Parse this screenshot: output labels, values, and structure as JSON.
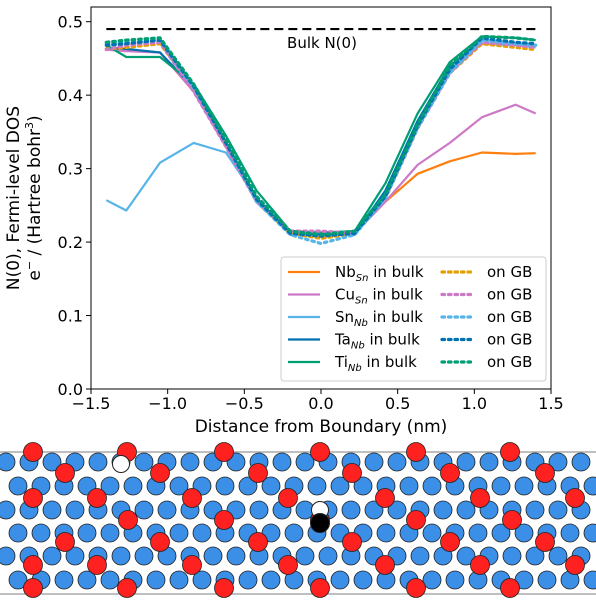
{
  "chart_data": {
    "type": "line",
    "xlabel": "Distance from Boundary (nm)",
    "ylabel_line1": "N(0), Fermi-level DOS",
    "ylabel_line2_pre": "e",
    "ylabel_line2_sup": "−",
    "ylabel_line2_mid": " / (Hartree bohr",
    "ylabel_line2_sup2": "3",
    "ylabel_line2_post": ")",
    "xlim": [
      -1.5,
      1.5
    ],
    "ylim": [
      0.0,
      0.52
    ],
    "xticks": [
      -1.5,
      -1.0,
      -0.5,
      0.0,
      0.5,
      1.0,
      1.5
    ],
    "xtick_labels": [
      "−1.5",
      "−1.0",
      "−0.5",
      "0.0",
      "0.5",
      "1.0",
      "1.5"
    ],
    "yticks": [
      0.0,
      0.1,
      0.2,
      0.3,
      0.4,
      0.5
    ],
    "ytick_labels": [
      "0.0",
      "0.1",
      "0.2",
      "0.3",
      "0.4",
      "0.5"
    ],
    "reference_line": {
      "label": "Bulk N(0)",
      "y": 0.49,
      "x": [
        -1.4,
        1.4
      ]
    },
    "x": [
      -1.4,
      -1.27,
      -1.05,
      -0.83,
      -0.62,
      -0.42,
      -0.2,
      0.0,
      0.22,
      0.42,
      0.63,
      0.84,
      1.05,
      1.27,
      1.4
    ],
    "series": [
      {
        "element": "Nb",
        "sub": "Sn",
        "suffix": " in bulk",
        "style": "solid",
        "color": "#ff7f0e",
        "values": [
          0.465,
          0.462,
          0.458,
          0.405,
          0.33,
          0.255,
          0.212,
          0.212,
          0.212,
          0.255,
          0.293,
          0.31,
          0.322,
          0.32,
          0.321
        ]
      },
      {
        "element": "Cu",
        "sub": "Sn",
        "suffix": " in bulk",
        "style": "solid",
        "color": "#cc79c7",
        "values": [
          0.462,
          0.46,
          0.458,
          0.405,
          0.33,
          0.255,
          0.212,
          0.212,
          0.212,
          0.255,
          0.305,
          0.335,
          0.37,
          0.387,
          0.375
        ]
      },
      {
        "element": "Sn",
        "sub": "Nb",
        "suffix": " in bulk",
        "style": "solid",
        "color": "#56b4e9",
        "values": [
          0.257,
          0.243,
          0.308,
          0.335,
          0.322,
          0.26,
          0.212,
          0.212,
          0.212,
          0.27,
          0.365,
          0.435,
          0.47,
          0.468,
          0.465
        ]
      },
      {
        "element": "Ta",
        "sub": "Nb",
        "suffix": " in bulk",
        "style": "solid",
        "color": "#0072b2",
        "values": [
          0.465,
          0.463,
          0.458,
          0.41,
          0.335,
          0.26,
          0.21,
          0.21,
          0.21,
          0.27,
          0.365,
          0.44,
          0.475,
          0.47,
          0.468
        ]
      },
      {
        "element": "Ti",
        "sub": "Nb",
        "suffix": " in bulk",
        "style": "solid",
        "color": "#009e73",
        "values": [
          0.468,
          0.452,
          0.452,
          0.415,
          0.345,
          0.27,
          0.215,
          0.213,
          0.215,
          0.28,
          0.375,
          0.445,
          0.48,
          0.478,
          0.475
        ]
      },
      {
        "element": "Nb",
        "sub": "Sn",
        "suffix": " on GB",
        "style": "dotted",
        "color": "#e69f00",
        "values": [
          0.463,
          0.465,
          0.47,
          0.41,
          0.335,
          0.255,
          0.212,
          0.205,
          0.212,
          0.26,
          0.355,
          0.43,
          0.47,
          0.465,
          0.462
        ]
      },
      {
        "element": "Cu",
        "sub": "Sn",
        "suffix": " on GB",
        "style": "dotted",
        "color": "#cc79c7",
        "values": [
          0.462,
          0.468,
          0.472,
          0.405,
          0.33,
          0.255,
          0.215,
          0.215,
          0.212,
          0.26,
          0.355,
          0.43,
          0.472,
          0.468,
          0.465
        ]
      },
      {
        "element": "Sn",
        "sub": "Nb",
        "suffix": " on GB",
        "style": "dotted",
        "color": "#56b4e9",
        "values": [
          0.47,
          0.472,
          0.475,
          0.41,
          0.335,
          0.255,
          0.21,
          0.198,
          0.21,
          0.26,
          0.355,
          0.43,
          0.475,
          0.47,
          0.468
        ]
      },
      {
        "element": "Ta",
        "sub": "Nb",
        "suffix": " on GB",
        "style": "dotted",
        "color": "#0072b2",
        "values": [
          0.468,
          0.47,
          0.475,
          0.412,
          0.335,
          0.258,
          0.212,
          0.208,
          0.212,
          0.262,
          0.358,
          0.435,
          0.478,
          0.472,
          0.47
        ]
      },
      {
        "element": "Ti",
        "sub": "Nb",
        "suffix": " on GB",
        "style": "dotted",
        "color": "#009e73",
        "values": [
          0.472,
          0.475,
          0.478,
          0.415,
          0.34,
          0.262,
          0.215,
          0.21,
          0.215,
          0.265,
          0.36,
          0.44,
          0.48,
          0.478,
          0.475
        ]
      }
    ],
    "legend_placement": "lower-right",
    "grid": false
  }
}
